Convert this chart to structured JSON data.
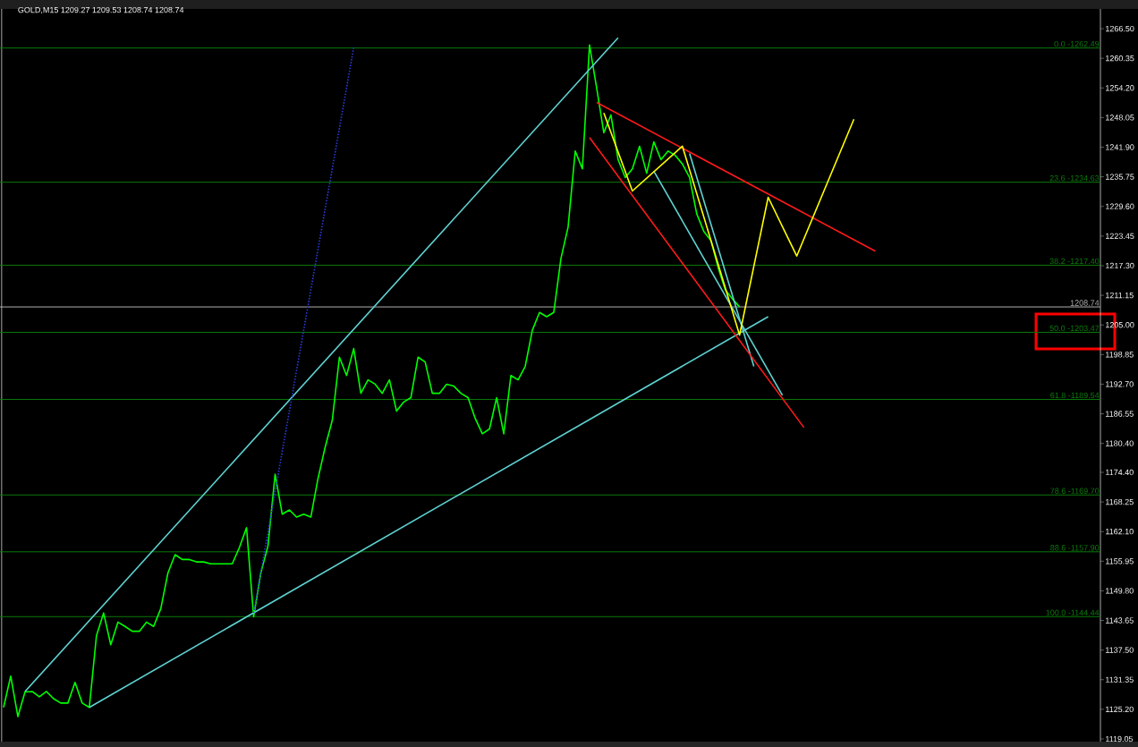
{
  "chart_data": {
    "type": "line",
    "title": "GOLD,M15 1209.27 1209.53 1208.74 1208.74",
    "categories": [
      null,
      null,
      null,
      null,
      null,
      null,
      null,
      null,
      null,
      null,
      null,
      null,
      null,
      null,
      null,
      null,
      null,
      null,
      null,
      null,
      null,
      null,
      null,
      null,
      null,
      null,
      null,
      null,
      null,
      null,
      null,
      null,
      null,
      null,
      null,
      null,
      null,
      null,
      null,
      null,
      null,
      null,
      null,
      null,
      null,
      null,
      null,
      null,
      null,
      null,
      null,
      null,
      null,
      null,
      null,
      null,
      null,
      null,
      null,
      null,
      null,
      null,
      null,
      null,
      null,
      null,
      null,
      null,
      null,
      null,
      null,
      null,
      null,
      null,
      null,
      null,
      null,
      null,
      null,
      null,
      null,
      null,
      null,
      null,
      null,
      null,
      null,
      null,
      null,
      null,
      null,
      null,
      null,
      null,
      null,
      null,
      null,
      null,
      null,
      null,
      null,
      null,
      null,
      null,
      null,
      null,
      null,
      null,
      null,
      null,
      null,
      null,
      null,
      null,
      null,
      null,
      null,
      null,
      null,
      null,
      null,
      null,
      null,
      null,
      null,
      null,
      null,
      null,
      null,
      null,
      null,
      null,
      null,
      null,
      null,
      null,
      null,
      null,
      null,
      null,
      null,
      null,
      null,
      null,
      null,
      null,
      null,
      null,
      null,
      null,
      null,
      null,
      null,
      null
    ],
    "ylim": [
      1118.49,
      1270.6
    ],
    "tick_labels": "y",
    "yticks": [
      {
        "value": 1266.5,
        "label": "1266.50"
      },
      {
        "value": 1260.35,
        "label": "1260.35"
      },
      {
        "value": 1254.2,
        "label": "1254.20"
      },
      {
        "value": 1248.05,
        "label": "1248.05"
      },
      {
        "value": 1241.9,
        "label": "1241.90"
      },
      {
        "value": 1235.75,
        "label": "1235.75"
      },
      {
        "value": 1229.6,
        "label": "1229.60"
      },
      {
        "value": 1223.45,
        "label": "1223.45"
      },
      {
        "value": 1217.3,
        "label": "1217.30"
      },
      {
        "value": 1211.15,
        "label": "1211.15"
      },
      {
        "value": 1205.0,
        "label": "1205.00"
      },
      {
        "value": 1198.85,
        "label": "1198.85"
      },
      {
        "value": 1192.7,
        "label": "1192.70"
      },
      {
        "value": 1186.55,
        "label": "1186.55"
      },
      {
        "value": 1180.4,
        "label": "1180.40"
      },
      {
        "value": 1174.4,
        "label": "1174.40"
      },
      {
        "value": 1168.25,
        "label": "1168.25"
      },
      {
        "value": 1162.1,
        "label": "1162.10"
      },
      {
        "value": 1155.95,
        "label": "1155.95"
      },
      {
        "value": 1149.8,
        "label": "1149.80"
      },
      {
        "value": 1143.65,
        "label": "1143.65"
      },
      {
        "value": 1137.5,
        "label": "1137.50"
      },
      {
        "value": 1131.35,
        "label": "1131.35"
      },
      {
        "value": 1125.2,
        "label": "1125.20"
      },
      {
        "value": 1119.05,
        "label": "1119.05"
      }
    ],
    "series": [
      {
        "color": "#00ff00",
        "values": [
          1125.6,
          1132.1,
          1123.7,
          1128.8,
          1128.9,
          1127.8,
          1128.9,
          1127.4,
          1126.5,
          1126.5,
          1130.8,
          1126.5,
          1125.6,
          1140.5,
          1145.2,
          1138.6,
          1143.3,
          1142.4,
          1141.4,
          1141.4,
          1143.3,
          1142.4,
          1146.1,
          1153.5,
          1157.3,
          1156.3,
          1156.3,
          1155.8,
          1155.8,
          1155.4,
          1155.4,
          1155.4,
          1155.4,
          1158.8,
          1162.9,
          1144.4,
          1153.5,
          1159.1,
          1174.0,
          1165.7,
          1166.6,
          1165.1,
          1165.7,
          1165.1,
          1173.1,
          1179.6,
          1185.2,
          1198.3,
          1194.5,
          1200.1,
          1190.8,
          1193.6,
          1192.7,
          1190.8,
          1193.6,
          1187.1,
          1189.0,
          1189.9,
          1198.3,
          1197.3,
          1190.8,
          1190.8,
          1192.7,
          1192.3,
          1190.8,
          1189.9,
          1185.6,
          1182.4,
          1183.4,
          1189.9,
          1182.4,
          1194.5,
          1193.6,
          1196.4,
          1203.9,
          1207.6,
          1206.7,
          1207.6,
          1218.8,
          1225.3,
          1241.1,
          1237.4,
          1263.1,
          1254.2,
          1244.9,
          1248.6,
          1239.3,
          1235.6,
          1237.4,
          1242.1,
          1236.5,
          1243.0,
          1239.3,
          1241.1,
          1240.2,
          1238.4,
          1235.6,
          1228.1,
          1224.4,
          1222.5,
          1216.9,
          1212.3,
          1210.4,
          1208.74,
          null,
          null,
          null,
          null,
          null,
          null,
          null,
          null,
          null,
          null,
          null,
          null,
          null,
          null,
          null,
          null,
          null,
          null,
          null,
          null,
          null,
          null,
          null,
          null,
          null,
          null,
          null,
          null,
          null,
          null,
          null,
          null,
          null,
          null,
          null,
          null,
          null,
          null,
          null,
          null,
          null,
          null,
          null,
          null,
          null,
          null,
          null,
          null,
          null,
          null
        ]
      },
      {
        "color": "#5fd3d3",
        "values": [
          null,
          null,
          null,
          1128.9,
          null,
          null,
          null,
          null,
          null,
          null,
          null,
          null,
          null,
          null,
          null,
          null,
          null,
          null,
          null,
          null,
          null,
          null,
          null,
          null,
          null,
          null,
          null,
          null,
          null,
          null,
          null,
          null,
          null,
          null,
          null,
          null,
          null,
          null,
          null,
          null,
          null,
          null,
          null,
          null,
          null,
          null,
          null,
          null,
          null,
          null,
          null,
          null,
          null,
          null,
          null,
          null,
          null,
          null,
          null,
          null,
          null,
          null,
          null,
          null,
          null,
          null,
          null,
          null,
          null,
          null,
          null,
          null,
          null,
          null,
          null,
          null,
          null,
          null,
          null,
          null,
          null,
          null,
          null,
          null,
          null,
          null,
          1264.6,
          null,
          null,
          null,
          null,
          null,
          null,
          null,
          null,
          null,
          null,
          null,
          null,
          null,
          null,
          null,
          null,
          null,
          null,
          null,
          null,
          null,
          null,
          null,
          null,
          null,
          null,
          null,
          null,
          null,
          null,
          null,
          null,
          null,
          null,
          null,
          null,
          null,
          null,
          null,
          null,
          null,
          null,
          null,
          null,
          null,
          null,
          null,
          null,
          null,
          null,
          null,
          null,
          null,
          null,
          null,
          null,
          null,
          null,
          null,
          null,
          null,
          null,
          null,
          null,
          null,
          null,
          null
        ]
      },
      {
        "color": "#5fd3d3",
        "values": [
          null,
          null,
          null,
          null,
          null,
          null,
          null,
          null,
          null,
          null,
          null,
          null,
          1125.6,
          null,
          null,
          null,
          null,
          null,
          null,
          null,
          null,
          null,
          null,
          null,
          null,
          null,
          null,
          null,
          null,
          null,
          null,
          null,
          null,
          null,
          null,
          null,
          null,
          null,
          null,
          null,
          null,
          null,
          null,
          null,
          null,
          null,
          null,
          null,
          null,
          null,
          null,
          null,
          null,
          null,
          null,
          null,
          null,
          null,
          null,
          null,
          null,
          null,
          null,
          null,
          null,
          null,
          null,
          null,
          null,
          null,
          null,
          null,
          null,
          null,
          null,
          null,
          null,
          null,
          null,
          null,
          null,
          null,
          null,
          null,
          null,
          null,
          null,
          null,
          null,
          null,
          null,
          null,
          null,
          null,
          null,
          null,
          null,
          null,
          null,
          null,
          null,
          null,
          null,
          null,
          null,
          null,
          null,
          1206.7,
          null,
          null,
          null,
          null,
          null,
          null,
          null,
          null,
          null,
          null,
          null,
          null,
          null,
          null,
          null,
          null,
          null,
          null,
          null,
          null,
          null,
          null,
          null,
          null,
          null,
          null,
          null,
          null,
          null,
          null,
          null,
          null,
          null,
          null,
          null,
          null,
          null,
          null,
          null,
          null,
          null,
          null,
          null,
          null,
          null,
          null
        ]
      },
      {
        "color": "#5fd3d3",
        "values": [
          null,
          null,
          null,
          null,
          null,
          null,
          null,
          null,
          null,
          null,
          null,
          null,
          null,
          null,
          null,
          null,
          null,
          null,
          null,
          null,
          null,
          null,
          null,
          null,
          null,
          null,
          null,
          null,
          null,
          null,
          null,
          null,
          null,
          null,
          null,
          null,
          null,
          null,
          null,
          null,
          null,
          null,
          null,
          null,
          null,
          null,
          null,
          null,
          null,
          null,
          null,
          null,
          null,
          null,
          null,
          null,
          null,
          null,
          null,
          null,
          null,
          null,
          null,
          null,
          null,
          null,
          null,
          null,
          null,
          null,
          null,
          null,
          null,
          null,
          null,
          null,
          null,
          null,
          null,
          null,
          null,
          null,
          null,
          null,
          null,
          null,
          null,
          null,
          null,
          null,
          null,
          1236.9,
          null,
          null,
          null,
          null,
          null,
          null,
          null,
          null,
          null,
          null,
          null,
          null,
          null,
          null,
          null,
          null,
          null,
          1190.4,
          null,
          null,
          null,
          null,
          null,
          null,
          null,
          null,
          null,
          null,
          null,
          null,
          null,
          null,
          null,
          null,
          null,
          null,
          null,
          null,
          null,
          null,
          null,
          null,
          null,
          null,
          null,
          null,
          null,
          null,
          null,
          null,
          null,
          null,
          null,
          null,
          null,
          null,
          null,
          null,
          null,
          null,
          null,
          null
        ]
      },
      {
        "color": "#5fd3d3",
        "values": [
          null,
          null,
          null,
          null,
          null,
          null,
          null,
          null,
          null,
          null,
          null,
          null,
          null,
          null,
          null,
          null,
          null,
          null,
          null,
          null,
          null,
          null,
          null,
          null,
          null,
          null,
          null,
          null,
          null,
          null,
          null,
          null,
          null,
          null,
          null,
          null,
          null,
          null,
          null,
          null,
          null,
          null,
          null,
          null,
          null,
          null,
          null,
          null,
          null,
          null,
          null,
          null,
          null,
          null,
          null,
          null,
          null,
          null,
          null,
          null,
          null,
          null,
          null,
          null,
          null,
          null,
          null,
          null,
          null,
          null,
          null,
          null,
          null,
          null,
          null,
          null,
          null,
          null,
          null,
          null,
          null,
          null,
          null,
          null,
          null,
          null,
          null,
          null,
          null,
          null,
          null,
          null,
          null,
          null,
          null,
          null,
          1240.6,
          null,
          null,
          null,
          null,
          null,
          null,
          null,
          null,
          1196.4,
          null,
          null,
          null,
          null,
          null,
          null,
          null,
          null,
          null,
          null,
          null,
          null,
          null,
          null,
          null,
          null,
          null,
          null,
          null,
          null,
          null,
          null,
          null,
          null,
          null,
          null,
          null,
          null,
          null,
          null,
          null,
          null,
          null,
          null,
          null,
          null,
          null,
          null,
          null,
          null,
          null,
          null,
          null,
          null,
          null,
          null,
          null,
          null
        ]
      },
      {
        "color": "#2b3bd6",
        "line_style": "dotted",
        "values": [
          null,
          null,
          null,
          null,
          null,
          null,
          null,
          null,
          null,
          null,
          null,
          null,
          null,
          null,
          null,
          null,
          null,
          null,
          null,
          null,
          null,
          null,
          null,
          null,
          null,
          null,
          null,
          null,
          null,
          null,
          null,
          null,
          null,
          null,
          null,
          1145.2,
          null,
          null,
          null,
          null,
          null,
          null,
          null,
          null,
          null,
          null,
          null,
          null,
          null,
          1262.6,
          null,
          null,
          null,
          null,
          null,
          null,
          null,
          null,
          null,
          null,
          null,
          null,
          null,
          null,
          null,
          null,
          null,
          null,
          null,
          null,
          null,
          null,
          null,
          null,
          null,
          null,
          null,
          null,
          null,
          null,
          null,
          null,
          null,
          null,
          null,
          null,
          null,
          null,
          null,
          null,
          null,
          null,
          null,
          null,
          null,
          null,
          null,
          null,
          null,
          null,
          null,
          null,
          null,
          null,
          null,
          null,
          null,
          null,
          null,
          null,
          null,
          null,
          null,
          null,
          null,
          null,
          null,
          null,
          null,
          null,
          null,
          null,
          null,
          null,
          null,
          null,
          null,
          null,
          null,
          null,
          null,
          null,
          null,
          null,
          null,
          null,
          null,
          null,
          null,
          null,
          null,
          null,
          null,
          null,
          null,
          null,
          null,
          null,
          null,
          null,
          null,
          null,
          null,
          null
        ]
      },
      {
        "color": "#ff1a1a",
        "values": [
          null,
          null,
          null,
          null,
          null,
          null,
          null,
          null,
          null,
          null,
          null,
          null,
          null,
          null,
          null,
          null,
          null,
          null,
          null,
          null,
          null,
          null,
          null,
          null,
          null,
          null,
          null,
          null,
          null,
          null,
          null,
          null,
          null,
          null,
          null,
          null,
          null,
          null,
          null,
          null,
          null,
          null,
          null,
          null,
          null,
          null,
          null,
          null,
          null,
          null,
          null,
          null,
          null,
          null,
          null,
          null,
          null,
          null,
          null,
          null,
          null,
          null,
          null,
          null,
          null,
          null,
          null,
          null,
          null,
          null,
          null,
          null,
          null,
          null,
          null,
          null,
          null,
          null,
          null,
          null,
          null,
          null,
          null,
          1251.2,
          null,
          null,
          null,
          null,
          null,
          null,
          null,
          null,
          null,
          null,
          null,
          null,
          null,
          null,
          null,
          null,
          null,
          null,
          null,
          null,
          null,
          null,
          null,
          null,
          null,
          null,
          null,
          null,
          null,
          null,
          null,
          null,
          null,
          null,
          null,
          null,
          null,
          null,
          1220.3,
          null,
          null,
          null,
          null,
          null,
          null,
          null,
          null,
          null,
          null,
          null,
          null,
          null,
          null,
          null,
          null,
          null,
          null,
          null,
          null,
          null,
          null,
          null,
          null,
          null,
          null,
          null,
          null,
          null,
          null,
          null
        ]
      },
      {
        "color": "#ff1a1a",
        "values": [
          null,
          null,
          null,
          null,
          null,
          null,
          null,
          null,
          null,
          null,
          null,
          null,
          null,
          null,
          null,
          null,
          null,
          null,
          null,
          null,
          null,
          null,
          null,
          null,
          null,
          null,
          null,
          null,
          null,
          null,
          null,
          null,
          null,
          null,
          null,
          null,
          null,
          null,
          null,
          null,
          null,
          null,
          null,
          null,
          null,
          null,
          null,
          null,
          null,
          null,
          null,
          null,
          null,
          null,
          null,
          null,
          null,
          null,
          null,
          null,
          null,
          null,
          null,
          null,
          null,
          null,
          null,
          null,
          null,
          null,
          null,
          null,
          null,
          null,
          null,
          null,
          null,
          null,
          null,
          null,
          null,
          null,
          1243.9,
          null,
          null,
          null,
          null,
          null,
          null,
          null,
          null,
          null,
          null,
          null,
          null,
          null,
          null,
          null,
          null,
          null,
          null,
          null,
          null,
          null,
          null,
          null,
          null,
          null,
          null,
          null,
          null,
          null,
          1183.7,
          null,
          null,
          null,
          null,
          null,
          null,
          null,
          null,
          null,
          null,
          null,
          null,
          null,
          null,
          null,
          null,
          null,
          null,
          null,
          null,
          null,
          null,
          null,
          null,
          null,
          null,
          null,
          null,
          null,
          null,
          null,
          null,
          null,
          null,
          null,
          null,
          null,
          null,
          null,
          null,
          null
        ]
      },
      {
        "color": "#ffff00",
        "values": [
          null,
          null,
          null,
          null,
          null,
          null,
          null,
          null,
          null,
          null,
          null,
          null,
          null,
          null,
          null,
          null,
          null,
          null,
          null,
          null,
          null,
          null,
          null,
          null,
          null,
          null,
          null,
          null,
          null,
          null,
          null,
          null,
          null,
          null,
          null,
          null,
          null,
          null,
          null,
          null,
          null,
          null,
          null,
          null,
          null,
          null,
          null,
          null,
          null,
          null,
          null,
          null,
          null,
          null,
          null,
          null,
          null,
          null,
          null,
          null,
          null,
          null,
          null,
          null,
          null,
          null,
          null,
          null,
          null,
          null,
          null,
          null,
          null,
          null,
          null,
          null,
          null,
          null,
          null,
          null,
          null,
          null,
          null,
          null,
          1249.0,
          null,
          null,
          null,
          1232.8,
          null,
          null,
          null,
          null,
          null,
          null,
          1242.1,
          null,
          null,
          null,
          null,
          null,
          null,
          null,
          1202.9,
          null,
          null,
          null,
          1231.5,
          null,
          null,
          null,
          1219.3,
          null,
          null,
          null,
          null,
          null,
          null,
          null,
          1247.7,
          null,
          null,
          null,
          null,
          null,
          null,
          null,
          null,
          null,
          null,
          null,
          null,
          null,
          null,
          null,
          null,
          null,
          null,
          null,
          null,
          null,
          null,
          null,
          null,
          null,
          null,
          null,
          null,
          null,
          null,
          null,
          null,
          null,
          null
        ]
      }
    ],
    "annotations": [
      {
        "text": "0.0 -",
        "y": 1262.49
      },
      {
        "text": "23.6 -",
        "y": 1234.63
      },
      {
        "text": "38.2 -",
        "y": 1217.4
      },
      {
        "text": "50.0 -",
        "y": 1203.47
      },
      {
        "text": "61.8 -",
        "y": 1189.54
      },
      {
        "text": "78.6 -",
        "y": 1169.7
      },
      {
        "text": "88.6 -",
        "y": 1157.9
      },
      {
        "text": "100.0 -",
        "y": 1144.44
      }
    ],
    "ref_lines": [
      {
        "axis": "y",
        "value": 1262.49,
        "label": "1262.49",
        "color": "#0b7a0b"
      },
      {
        "axis": "y",
        "value": 1234.63,
        "label": "1234.63",
        "color": "#0b7a0b"
      },
      {
        "axis": "y",
        "value": 1217.4,
        "label": "1217.40",
        "color": "#0b7a0b"
      },
      {
        "axis": "y",
        "value": 1203.47,
        "label": "1203.47",
        "color": "#0b7a0b"
      },
      {
        "axis": "y",
        "value": 1189.54,
        "label": "1189.54",
        "color": "#0b7a0b"
      },
      {
        "axis": "y",
        "value": 1169.7,
        "label": "1169.70",
        "color": "#0b7a0b"
      },
      {
        "axis": "y",
        "value": 1157.9,
        "label": "1157.90",
        "color": "#0b7a0b"
      },
      {
        "axis": "y",
        "value": 1144.44,
        "label": "1144.44",
        "color": "#0b7a0b"
      },
      {
        "axis": "y",
        "value": 1208.74,
        "label": "1208.74",
        "color": "#b0b0b0"
      }
    ]
  }
}
